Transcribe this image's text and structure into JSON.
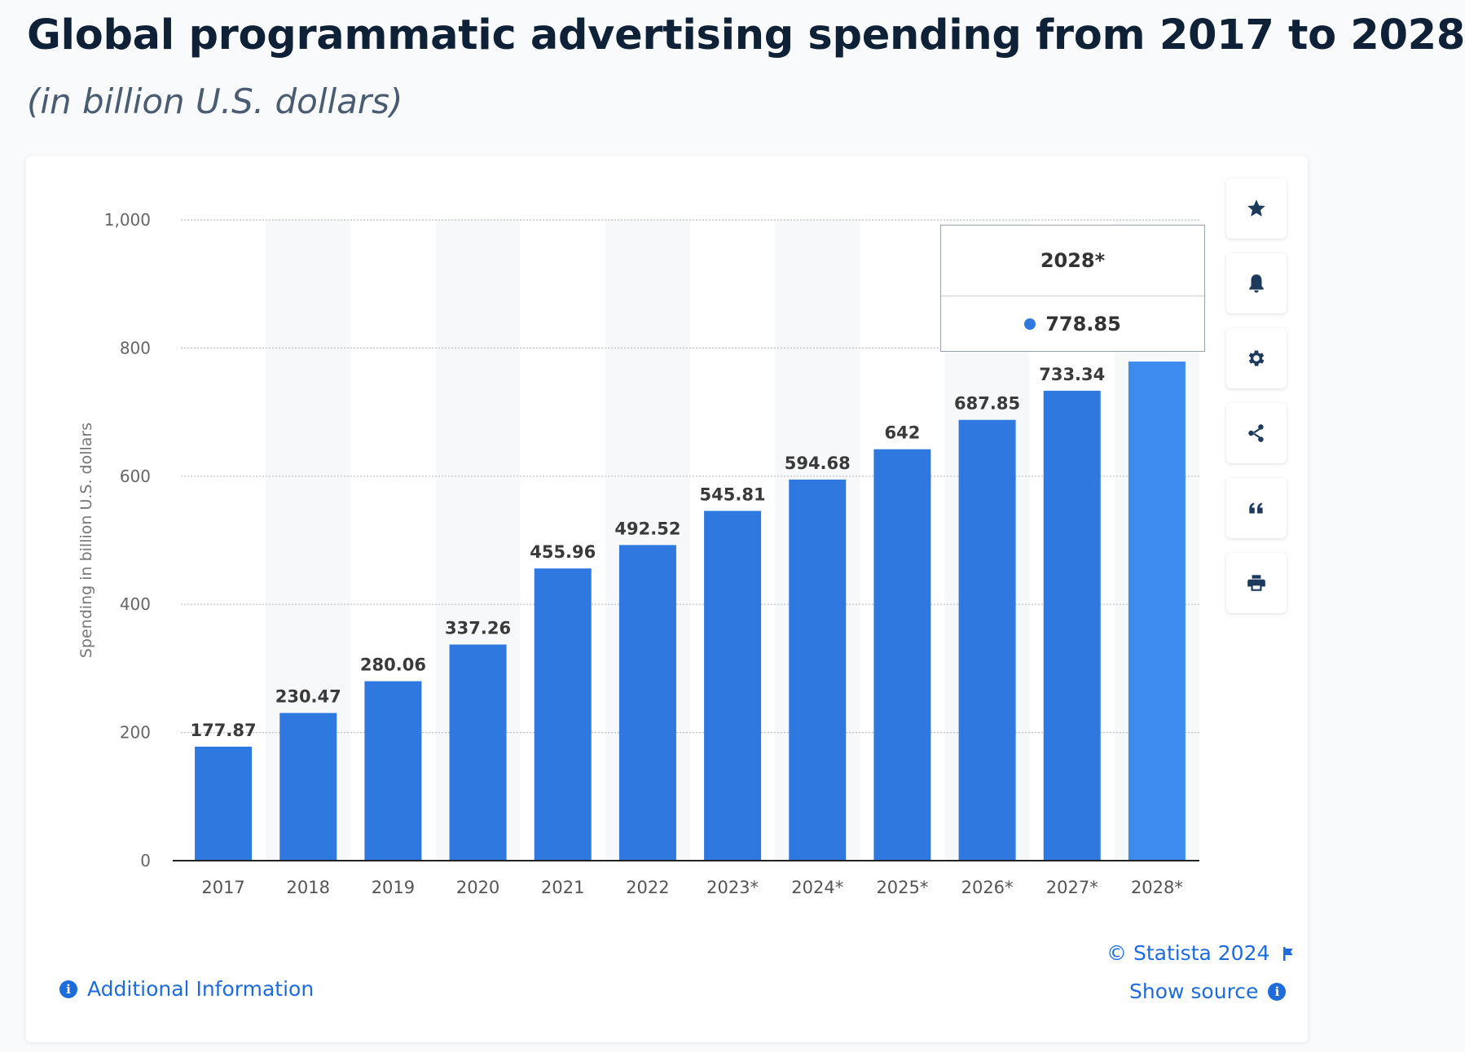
{
  "header": {
    "title": "Global programmatic advertising spending from 2017 to 2028",
    "subtitle": "(in billion U.S. dollars)"
  },
  "toolbar": {
    "buttons": [
      {
        "name": "favorite-star-button",
        "icon": "star-icon"
      },
      {
        "name": "notification-bell-button",
        "icon": "bell-icon"
      },
      {
        "name": "settings-button",
        "icon": "gear-icon"
      },
      {
        "name": "share-button",
        "icon": "share-icon"
      },
      {
        "name": "cite-button",
        "icon": "quote-icon"
      },
      {
        "name": "print-button",
        "icon": "printer-icon"
      }
    ]
  },
  "tooltip": {
    "category": "2028*",
    "value": "778.85"
  },
  "footer": {
    "copyright": "© Statista 2024",
    "show_source": "Show source",
    "additional_info": "Additional Information"
  },
  "colors": {
    "bar": "#2e78e0",
    "bar_highlight": "#3f8cf0",
    "accent_link": "#1e6bdc"
  },
  "chart_data": {
    "type": "bar",
    "title": "Global programmatic advertising spending from 2017 to 2028",
    "subtitle": "(in billion U.S. dollars)",
    "ylabel": "Spending in billion U.S. dollars",
    "xlabel": "",
    "categories": [
      "2017",
      "2018",
      "2019",
      "2020",
      "2021",
      "2022",
      "2023*",
      "2024*",
      "2025*",
      "2026*",
      "2027*",
      "2028*"
    ],
    "values": [
      177.87,
      230.47,
      280.06,
      337.26,
      455.96,
      492.52,
      545.81,
      594.68,
      642,
      687.85,
      733.34,
      778.85
    ],
    "value_labels": [
      "177.87",
      "230.47",
      "280.06",
      "337.26",
      "455.96",
      "492.52",
      "545.81",
      "594.68",
      "642",
      "687.85",
      "733.34",
      ""
    ],
    "ylim": [
      0,
      1000
    ],
    "yticks": [
      0,
      200,
      400,
      600,
      800,
      1000
    ],
    "ytick_labels": [
      "0",
      "200",
      "400",
      "600",
      "800",
      "1,000"
    ],
    "grid": true,
    "highlighted_category": "2028*"
  }
}
